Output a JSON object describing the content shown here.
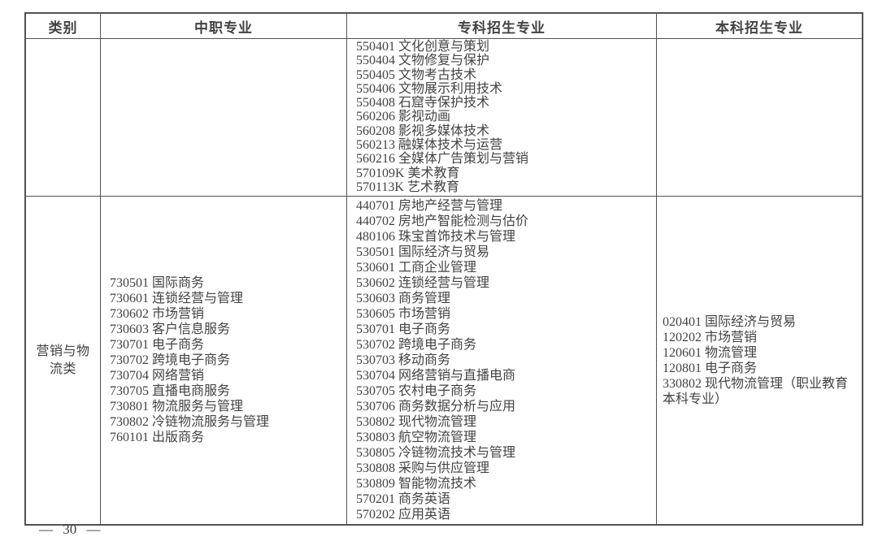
{
  "page": {
    "number": "— 30 —"
  },
  "colors": {
    "text": "#434343",
    "border": "#525252",
    "background": "#ffffff"
  },
  "table": {
    "headers": [
      "类别",
      "中职专业",
      "专科招生专业",
      "本科招生专业"
    ],
    "rows": [
      {
        "category": "",
        "secondary_vocational": [],
        "junior_college": [
          "550401 文化创意与策划",
          "550404 文物修复与保护",
          "550405 文物考古技术",
          "550406 文物展示利用技术",
          "550408 石窟寺保护技术",
          "560206 影视动画",
          "560208 影视多媒体技术",
          "560213 融媒体技术与运营",
          "560216 全媒体广告策划与营销",
          "570109K 美术教育",
          "570113K 艺术教育"
        ],
        "undergraduate": []
      },
      {
        "category": "营销与物流类",
        "secondary_vocational": [
          "730501 国际商务",
          "730601 连锁经营与管理",
          "730602 市场营销",
          "730603 客户信息服务",
          "730701 电子商务",
          "730702 跨境电子商务",
          "730704 网络营销",
          "730705 直播电商服务",
          "730801 物流服务与管理",
          "730802 冷链物流服务与管理",
          "760101 出版商务"
        ],
        "junior_college": [
          "440701 房地产经营与管理",
          "440702 房地产智能检测与估价",
          "480106 珠宝首饰技术与管理",
          "530501 国际经济与贸易",
          "530601 工商企业管理",
          "530602 连锁经营与管理",
          "530603 商务管理",
          "530605 市场营销",
          "530701 电子商务",
          "530702 跨境电子商务",
          "530703 移动商务",
          "530704 网络营销与直播电商",
          "530705 农村电子商务",
          "530706 商务数据分析与应用",
          "530802 现代物流管理",
          "530803 航空物流管理",
          "530805 冷链物流技术与管理",
          "530808 采购与供应管理",
          "530809 智能物流技术",
          "570201 商务英语",
          "570202 应用英语"
        ],
        "undergraduate": [
          "020401 国际经济与贸易",
          "120202 市场营销",
          "120601 物流管理",
          "120801 电子商务",
          "330802 现代物流管理（职业教育本科专业）"
        ]
      }
    ]
  }
}
